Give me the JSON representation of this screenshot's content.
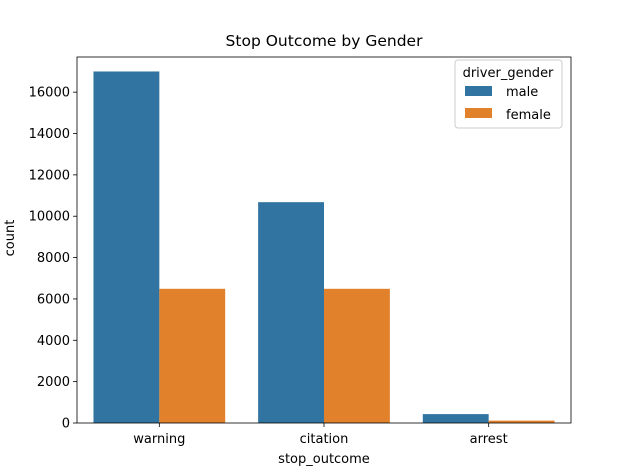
{
  "chart_data": {
    "type": "bar",
    "title": "Stop Outcome by Gender",
    "xlabel": "stop_outcome",
    "ylabel": "count",
    "categories": [
      "warning",
      "citation",
      "arrest"
    ],
    "series": [
      {
        "name": "male",
        "values": [
          17000,
          10680,
          430
        ]
      },
      {
        "name": "female",
        "values": [
          6490,
          6490,
          115
        ]
      }
    ],
    "ylim": [
      0,
      17000
    ],
    "yticks": [
      0,
      2000,
      4000,
      6000,
      8000,
      10000,
      12000,
      14000,
      16000
    ],
    "legend": {
      "title": "driver_gender",
      "position": "top-right"
    },
    "colors": {
      "male": "#3274a1",
      "female": "#e1812c"
    },
    "grid": false
  }
}
